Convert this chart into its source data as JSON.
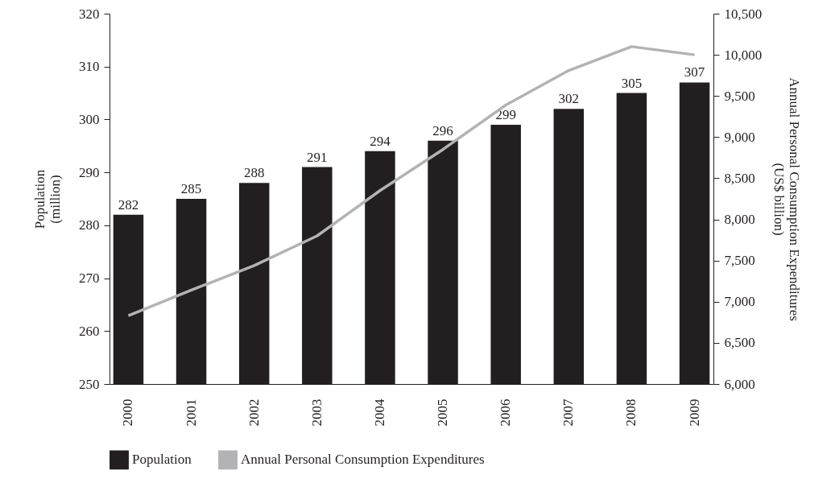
{
  "chart_data": {
    "type": "bar",
    "ylabel": "Population\n(million)",
    "y2label": "Annual Personal Consumption Expenditures\n(US$ billion)",
    "categories": [
      "2000",
      "2001",
      "2002",
      "2003",
      "2004",
      "2005",
      "2006",
      "2007",
      "2008",
      "2009"
    ],
    "series": [
      {
        "name": "Population",
        "color": "#231f20",
        "values": [
          282,
          285,
          288,
          291,
          294,
          296,
          299,
          302,
          305,
          307
        ],
        "value_labels": [
          "282",
          "285",
          "288",
          "291",
          "294",
          "296",
          "299",
          "302",
          "305",
          "307"
        ]
      },
      {
        "name": "Annual Personal Consumption Expenditures",
        "type": "line",
        "axis": "y2",
        "color": "#b3b3b5",
        "values": [
          6830,
          7140,
          7440,
          7800,
          8350,
          8850,
          9390,
          9810,
          10100,
          10000
        ]
      }
    ],
    "ylim": [
      250,
      320
    ],
    "yticks": [
      250,
      260,
      270,
      280,
      290,
      300,
      310,
      320
    ],
    "y2lim": [
      6000,
      10500
    ],
    "y2ticks": [
      {
        "value": 6000,
        "label": "6,000"
      },
      {
        "value": 6500,
        "label": "6,500"
      },
      {
        "value": 7000,
        "label": "7,000"
      },
      {
        "value": 7500,
        "label": "7,500"
      },
      {
        "value": 8000,
        "label": "8,000"
      },
      {
        "value": 8500,
        "label": "8,500"
      },
      {
        "value": 9000,
        "label": "9,000"
      },
      {
        "value": 9500,
        "label": "9,500"
      },
      {
        "value": 10000,
        "label": "10,000"
      },
      {
        "value": 10500,
        "label": "10,500"
      }
    ],
    "grid": false,
    "legend": "bottom"
  }
}
